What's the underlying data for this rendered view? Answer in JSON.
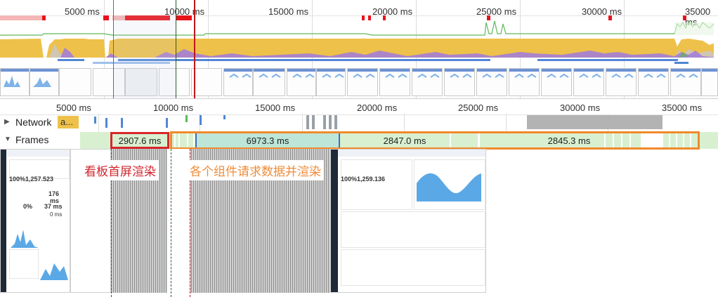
{
  "overview": {
    "ticks": [
      "5000 ms",
      "10000 ms",
      "15000 ms",
      "20000 ms",
      "25000 ms",
      "30000 ms",
      "35000 ms"
    ]
  },
  "main_ruler": {
    "ticks": [
      "5000 ms",
      "10000 ms",
      "15000 ms",
      "20000 ms",
      "25000 ms",
      "30000 ms",
      "35000 ms"
    ]
  },
  "tracks": {
    "network": {
      "label": "Network",
      "request_label": "a..."
    },
    "frames": {
      "label": "Frames"
    }
  },
  "frames": [
    {
      "duration": "2907.6 ms"
    },
    {
      "duration": "6973.3 ms"
    },
    {
      "duration": "2847.0 ms"
    },
    {
      "duration": "2845.3 ms"
    }
  ],
  "annotations": {
    "first_render": "看板首屏渲染",
    "components_render": "各个组件请求数据并渲染"
  },
  "screenshot_1": {
    "stat_main": "100%1,257.523",
    "stat_a": "176",
    "stat_b": "ms",
    "stat_c": "0%",
    "stat_d": "37 ms",
    "stat_e": "0 ms"
  },
  "screenshot_2": {
    "stat_main": "100%1,259.136"
  },
  "colors": {
    "overview_red": "#e8131a",
    "overview_pink": "#f4b6b6",
    "cpu_yellow": "#eec14a",
    "cpu_purple": "#a37ed6",
    "net_blue": "#4f86d6",
    "frame_green": "#d8f0d0",
    "frame_selected": "#bde6d8",
    "highlight_red": "#d7272c",
    "highlight_orange": "#f08a2b",
    "annot_red": "#d0242c",
    "annot_orange": "#ee8c3a"
  }
}
